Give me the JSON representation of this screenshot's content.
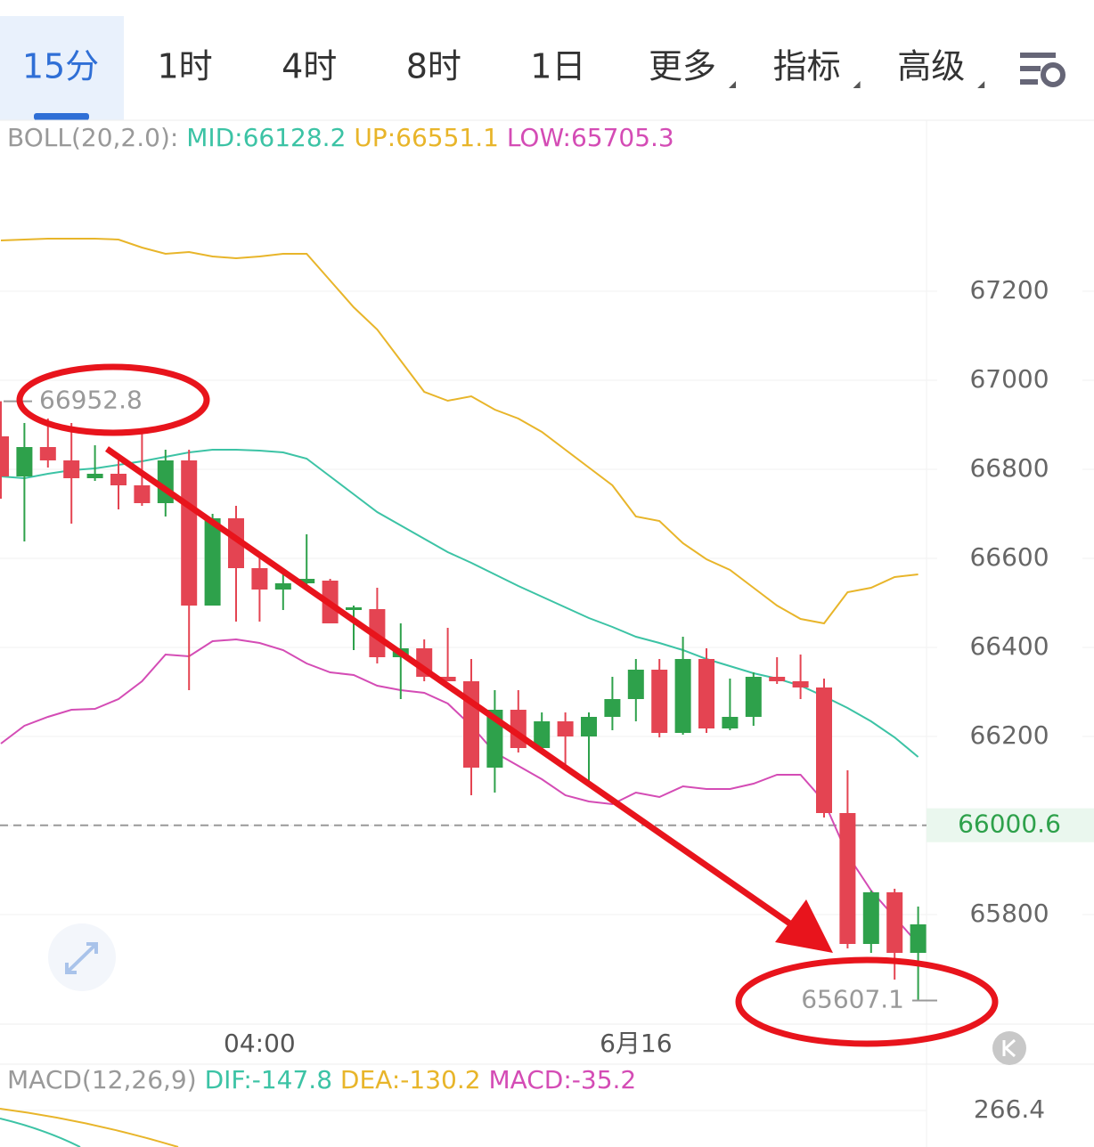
{
  "tabs": [
    "15分",
    "1时",
    "4时",
    "8时",
    "1日",
    "更多",
    "指标",
    "高级"
  ],
  "chart_data": {
    "type": "candlestick",
    "indicator_label": "BOLL(20,2.0):",
    "indicator_values": [
      "MID:66128.2",
      "UP:66551.1",
      "LOW:65705.3"
    ],
    "categories": [
      null,
      null,
      null,
      null,
      null,
      null,
      null,
      null,
      null,
      null,
      null,
      "04:00",
      null,
      null,
      null,
      null,
      null,
      null,
      null,
      null,
      null,
      null,
      null,
      null,
      null,
      null,
      null,
      "6月16",
      null,
      null,
      null,
      null,
      null,
      null,
      null,
      null,
      null,
      null,
      null,
      null
    ],
    "open": [
      66874,
      66784,
      66850,
      66820,
      66780,
      66790,
      66764,
      66724,
      66820,
      66494,
      66690,
      66578,
      66530,
      66544,
      66550,
      66484,
      66486,
      66378,
      66398,
      66334,
      66324,
      66130,
      66260,
      66174,
      66234,
      66200,
      66244,
      66284,
      66350,
      66208,
      66374,
      66218,
      66244,
      66334,
      66324,
      66310,
      66028,
      65734,
      65850,
      65714
    ],
    "close": [
      66784,
      66850,
      66820,
      66780,
      66790,
      66764,
      66724,
      66820,
      66494,
      66690,
      66578,
      66530,
      66544,
      66554,
      66454,
      66490,
      66378,
      66398,
      66334,
      66324,
      66130,
      66260,
      66174,
      66234,
      66200,
      66244,
      66284,
      66350,
      66208,
      66374,
      66218,
      66244,
      66334,
      66324,
      66310,
      66028,
      65734,
      65850,
      65714,
      65778
    ],
    "high": [
      66952.8,
      66904,
      66914,
      66904,
      66854,
      66834,
      66884,
      66844,
      66844,
      66700,
      66718,
      66604,
      66574,
      66654,
      66554,
      66494,
      66534,
      66454,
      66418,
      66444,
      66374,
      66304,
      66304,
      66254,
      66254,
      66254,
      66334,
      66374,
      66374,
      66424,
      66398,
      66330,
      66344,
      66378,
      66384,
      66330,
      66124,
      65854,
      65858,
      65818
    ],
    "low": [
      66734,
      66638,
      66804,
      66678,
      66774,
      66710,
      66718,
      66694,
      66304,
      66494,
      66458,
      66458,
      66484,
      66538,
      66454,
      66394,
      66364,
      66284,
      66324,
      66324,
      66068,
      66074,
      66164,
      66164,
      66134,
      66094,
      66214,
      66234,
      66198,
      66204,
      66208,
      66214,
      66224,
      66318,
      66284,
      66018,
      65724,
      65714,
      65654,
      65607.1
    ],
    "rise_color": "#2ea14b",
    "fall_color": "#e44452",
    "series": [
      {
        "color": "#3cc3a5",
        "values": [
          66784,
          66780,
          66790,
          66798,
          66802,
          66810,
          66818,
          66828,
          66838,
          66844,
          66844,
          66842,
          66838,
          66824,
          66784,
          66744,
          66704,
          66674,
          66644,
          66614,
          66590,
          66564,
          66538,
          66514,
          66490,
          66466,
          66446,
          66424,
          66410,
          66394,
          66374,
          66358,
          66342,
          66330,
          66314,
          66290,
          66264,
          66234,
          66198,
          66154
        ]
      },
      {
        "color": "#e8b52a",
        "values": [
          67314,
          67316,
          67318,
          67318,
          67318,
          67316,
          67298,
          67284,
          67288,
          67278,
          67274,
          67278,
          67284,
          67284,
          67224,
          67164,
          67114,
          67044,
          66974,
          66954,
          66964,
          66934,
          66914,
          66884,
          66844,
          66804,
          66764,
          66694,
          66684,
          66634,
          66598,
          66574,
          66534,
          66494,
          66464,
          66454,
          66524,
          66534,
          66558,
          66564
        ]
      },
      {
        "color": "#d44cb5",
        "values": [
          66184,
          66224,
          66244,
          66260,
          66262,
          66284,
          66324,
          66384,
          66380,
          66414,
          66418,
          66410,
          66394,
          66364,
          66344,
          66338,
          66314,
          66304,
          66298,
          66274,
          66224,
          66164,
          66134,
          66104,
          66068,
          66054,
          66048,
          66074,
          66064,
          66088,
          66082,
          66082,
          66094,
          66114,
          66114,
          66054,
          65934,
          65854,
          65794,
          65734
        ]
      }
    ],
    "ylim": [
      65554,
      67584
    ],
    "yticks": [
      65800,
      66000,
      66200,
      66400,
      66600,
      66800,
      67000,
      67200
    ],
    "grid": true,
    "high_marker": 66952.8,
    "low_marker": 65607.1,
    "last_price": 66000.6
  },
  "macd": {
    "label": "MACD(12,26,9)",
    "values": [
      "DIF:-147.8",
      "DEA:-130.2",
      "MACD:-35.2"
    ],
    "axis_value": 266.4
  }
}
